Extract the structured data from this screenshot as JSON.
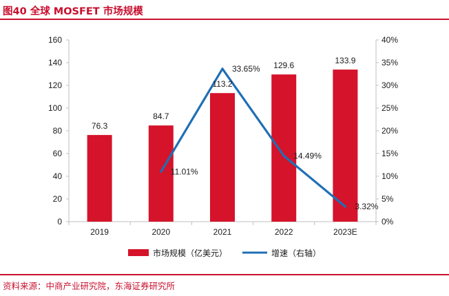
{
  "figure": {
    "title": "图40  全球 MOSFET 市场规模",
    "source": "资料来源：中商产业研究院，东海证券研究所"
  },
  "colors": {
    "accent": "#c8102e",
    "bar": "#d5132b",
    "line": "#1f6fb4",
    "axis": "#bfbfbf",
    "text": "#1a1a1a"
  },
  "chart_data": {
    "type": "bar",
    "title": "全球 MOSFET 市场规模",
    "categories": [
      "2019",
      "2020",
      "2021",
      "2022",
      "2023E"
    ],
    "series": [
      {
        "name": "市场规模（亿美元）",
        "type": "bar",
        "axis": "left",
        "values": [
          76.3,
          84.7,
          113.2,
          129.6,
          133.9
        ],
        "labels": [
          "76.3",
          "84.7",
          "113.2",
          "129.6",
          "133.9"
        ]
      },
      {
        "name": "增速（右轴）",
        "type": "line",
        "axis": "right",
        "values": [
          null,
          11.01,
          33.65,
          14.49,
          3.32
        ],
        "labels": [
          null,
          "11.01%",
          "33.65%",
          "14.49%",
          "3.32%"
        ]
      }
    ],
    "left_axis": {
      "min": 0,
      "max": 160,
      "ticks": [
        0,
        20,
        40,
        60,
        80,
        100,
        120,
        140,
        160
      ],
      "tick_labels": [
        "0",
        "20",
        "40",
        "60",
        "80",
        "100",
        "120",
        "140",
        "160"
      ]
    },
    "right_axis": {
      "min": 0,
      "max": 40,
      "ticks": [
        0,
        5,
        10,
        15,
        20,
        25,
        30,
        35,
        40
      ],
      "tick_labels": [
        "0%",
        "5%",
        "10%",
        "15%",
        "20%",
        "25%",
        "30%",
        "35%",
        "40%"
      ]
    },
    "legend_position": "bottom-center",
    "grid": false
  }
}
